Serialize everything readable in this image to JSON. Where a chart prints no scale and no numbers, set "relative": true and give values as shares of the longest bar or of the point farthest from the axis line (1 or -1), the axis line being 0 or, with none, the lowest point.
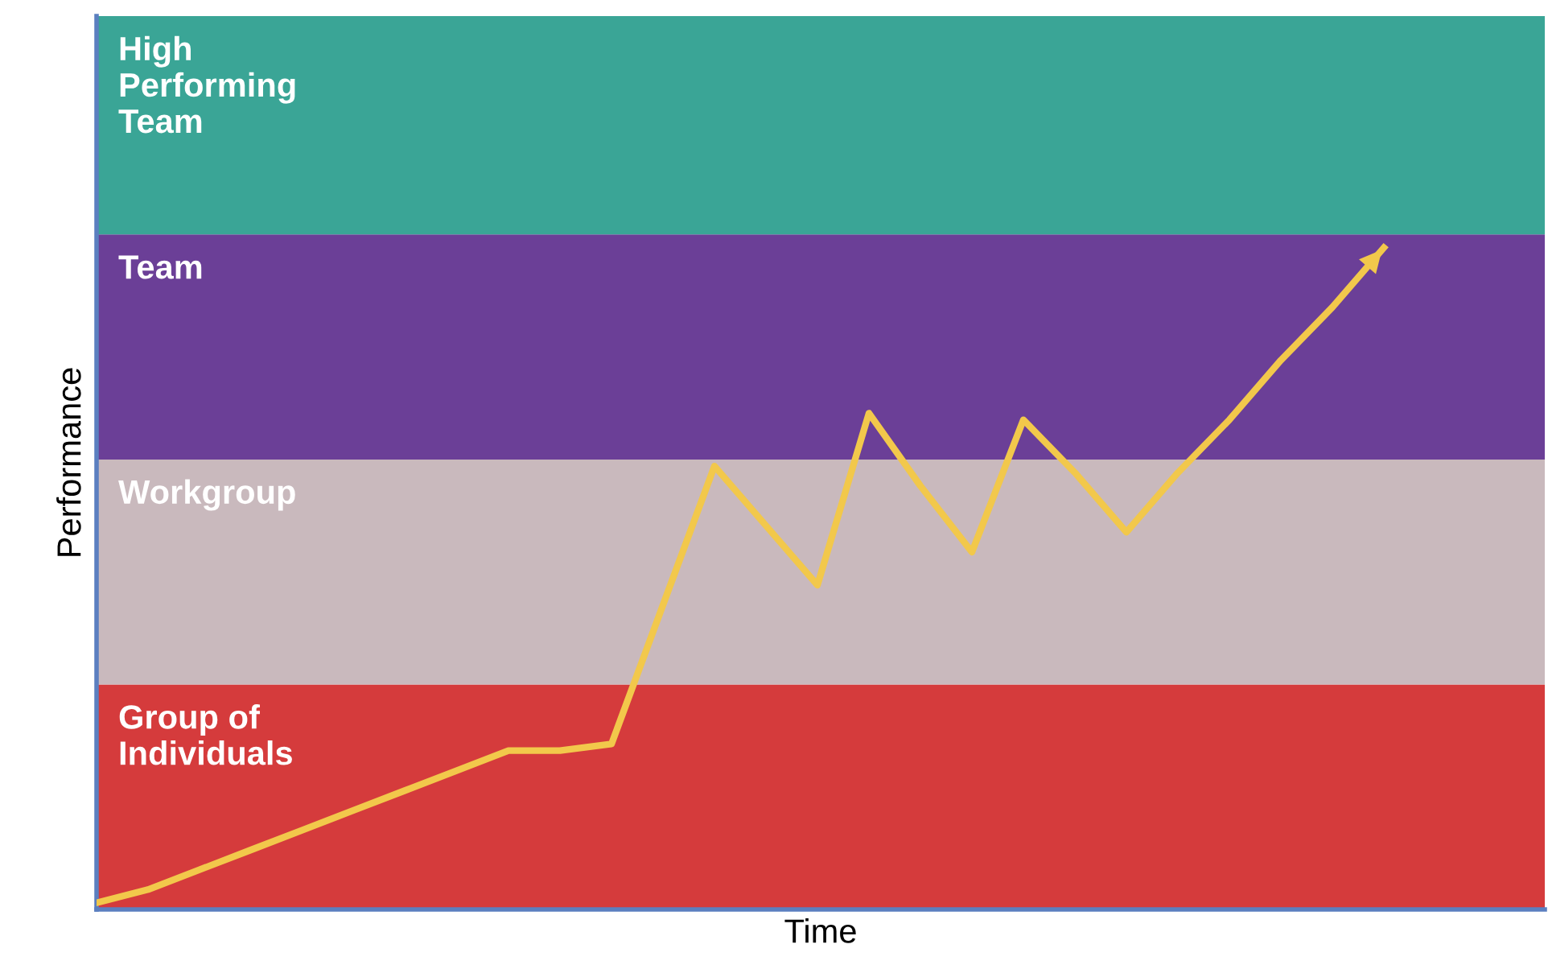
{
  "chart_data": {
    "type": "line",
    "relative": true,
    "xlabel": "Time",
    "ylabel": "Performance",
    "categories": [
      null,
      null,
      null,
      null,
      null,
      null,
      null,
      null,
      null,
      null,
      null,
      null,
      null,
      null,
      null,
      null,
      null,
      null,
      null,
      null,
      null,
      null,
      null,
      null,
      null,
      null
    ],
    "series": [
      {
        "color": "#f2c84b",
        "values": [
          0.01,
          0.03,
          0.06,
          0.09,
          0.12,
          0.15,
          0.18,
          0.21,
          0.24,
          0.24,
          0.25,
          0.46,
          0.67,
          0.58,
          0.49,
          0.75,
          0.64,
          0.54,
          0.74,
          0.66,
          0.57,
          0.66,
          0.74,
          0.83,
          0.91,
          1
        ]
      }
    ],
    "bands": [
      {
        "axis": "y",
        "from": 0,
        "to": 0.34,
        "label": "Group of\nIndividuals",
        "color": "#d53b3c"
      },
      {
        "axis": "y",
        "from": 0.34,
        "to": 0.68,
        "label": "Workgroup",
        "color": "#c9b9bd"
      },
      {
        "axis": "y",
        "from": 0.68,
        "to": 1.02,
        "label": "Team",
        "color": "#6b3f97"
      },
      {
        "axis": "y",
        "from": 1.02,
        "to": 1.35,
        "label": "High\nPerforming\nTeam",
        "color": "#3aa596"
      }
    ]
  }
}
